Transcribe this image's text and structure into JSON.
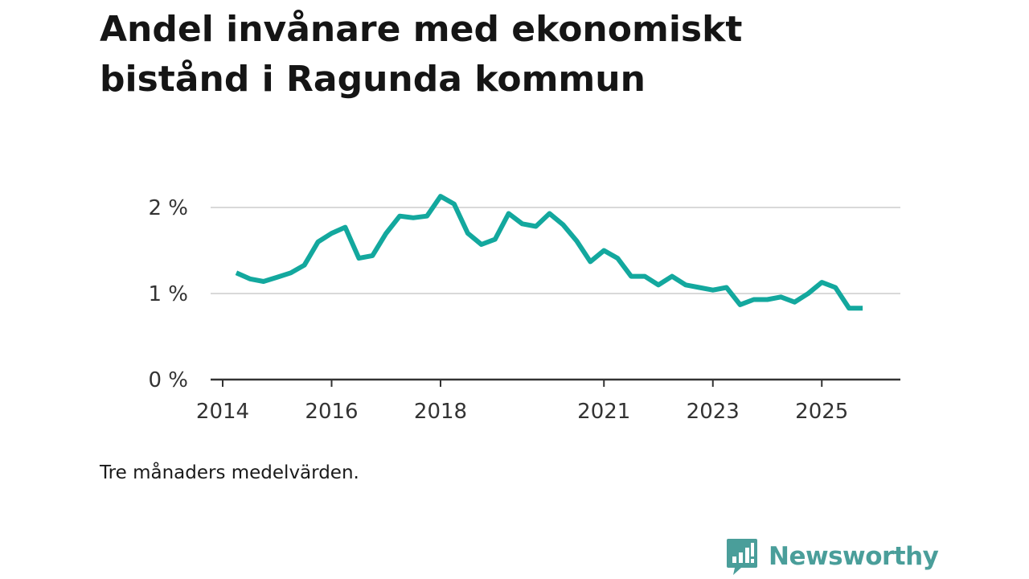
{
  "title": "Andel invånare med ekonomiskt bistånd i Ragunda kommun",
  "caption": "Tre månaders medelvärden.",
  "brand": {
    "name": "Newsworthy",
    "color": "#4a9e9a",
    "icon": "newsworthy-logo-icon"
  },
  "colors": {
    "line": "#13a89e",
    "grid": "#d9d9d9",
    "axis": "#333333"
  },
  "chart_data": {
    "type": "line",
    "title": "Andel invånare med ekonomiskt bistånd i Ragunda kommun",
    "xlabel": "",
    "ylabel": "",
    "ylim": [
      0,
      2
    ],
    "xlim": [
      2014,
      2026
    ],
    "yticks": [
      {
        "value": 0,
        "label": "0 %"
      },
      {
        "value": 1,
        "label": "1 %"
      },
      {
        "value": 2,
        "label": "2 %"
      }
    ],
    "xticks": [
      {
        "value": 2014,
        "label": "2014"
      },
      {
        "value": 2016,
        "label": "2016"
      },
      {
        "value": 2018,
        "label": "2018"
      },
      {
        "value": 2021,
        "label": "2021"
      },
      {
        "value": 2023,
        "label": "2023"
      },
      {
        "value": 2025,
        "label": "2025"
      }
    ],
    "grid": true,
    "series": [
      {
        "name": "Andel invånare med ekonomiskt bistånd",
        "x": [
          2014.25,
          2014.5,
          2014.75,
          2015.0,
          2015.25,
          2015.5,
          2015.75,
          2016.0,
          2016.25,
          2016.5,
          2016.75,
          2017.0,
          2017.25,
          2017.5,
          2017.75,
          2018.0,
          2018.25,
          2018.5,
          2018.75,
          2019.0,
          2019.25,
          2019.5,
          2019.75,
          2020.0,
          2020.25,
          2020.5,
          2020.75,
          2021.0,
          2021.25,
          2021.5,
          2021.75,
          2022.0,
          2022.25,
          2022.5,
          2022.75,
          2023.0,
          2023.25,
          2023.5,
          2023.75,
          2024.0,
          2024.25,
          2024.5,
          2024.75,
          2025.0,
          2025.25,
          2025.5,
          2025.75
        ],
        "values": [
          1.24,
          1.17,
          1.14,
          1.19,
          1.24,
          1.33,
          1.6,
          1.7,
          1.77,
          1.41,
          1.44,
          1.7,
          1.9,
          1.88,
          1.9,
          2.13,
          2.04,
          1.7,
          1.57,
          1.63,
          1.93,
          1.81,
          1.78,
          1.93,
          1.8,
          1.61,
          1.37,
          1.5,
          1.41,
          1.2,
          1.2,
          1.1,
          1.2,
          1.1,
          1.07,
          1.04,
          1.07,
          0.87,
          0.93,
          0.93,
          0.96,
          0.9,
          1.0,
          1.13,
          1.07,
          0.83,
          0.83
        ]
      }
    ]
  }
}
